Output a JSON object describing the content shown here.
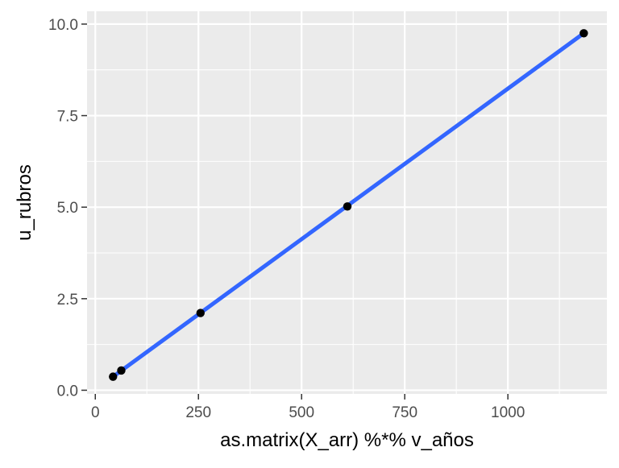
{
  "colors": {
    "panel_background": "#EBEBEB",
    "grid_line": "#FFFFFF",
    "tick": "#333333",
    "tick_label": "#4D4D4D",
    "point": "#000000",
    "fit_line": "#3366FF"
  },
  "chart_data": {
    "type": "scatter",
    "title": "",
    "xlabel": "as.matrix(X_arr) %*% v_años",
    "ylabel": "u_rubros",
    "xlim": [
      -20,
      1240
    ],
    "ylim": [
      -0.1,
      10.35
    ],
    "x_ticks": [
      0,
      250,
      500,
      750,
      1000
    ],
    "x_tick_labels": [
      "0",
      "250",
      "500",
      "750",
      "1000"
    ],
    "y_ticks": [
      0.0,
      2.5,
      5.0,
      7.5,
      10.0
    ],
    "y_tick_labels": [
      "0.0",
      "2.5",
      "5.0",
      "7.5",
      "10.0"
    ],
    "x_minor_ticks": [
      125,
      375,
      625,
      875,
      1125
    ],
    "y_minor_ticks": [
      1.25,
      3.75,
      6.25,
      8.75
    ],
    "grid": true,
    "series": [
      {
        "kind": "points",
        "x": [
          43,
          63,
          255,
          611,
          1184
        ],
        "y": [
          0.37,
          0.54,
          2.11,
          5.02,
          9.75
        ]
      },
      {
        "kind": "fitted_line",
        "method": "linear",
        "x": [
          43,
          1184
        ],
        "y": [
          0.37,
          9.75
        ]
      }
    ]
  }
}
